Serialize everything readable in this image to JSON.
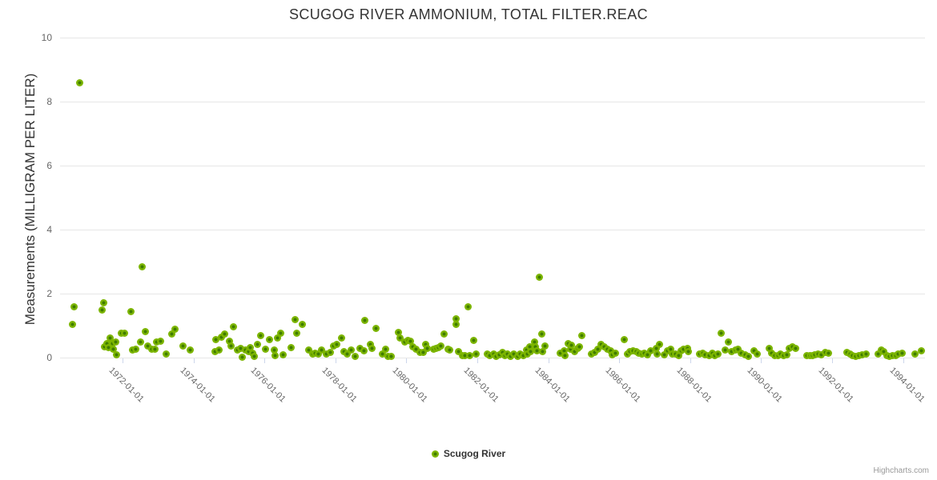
{
  "chart_data": {
    "type": "scatter",
    "title": "SCUGOG RIVER AMMONIUM, TOTAL FILTER.REAC",
    "ylabel": "Measurements (MILLIGRAM PER LITER)",
    "xlabel": "",
    "series_name": "Scugog River",
    "legend_position": "bottom-center",
    "grid": "horizontal",
    "ylim": [
      0,
      10
    ],
    "y_ticks": [
      0,
      2,
      4,
      6,
      8,
      10
    ],
    "xlim": [
      1970.24,
      1994.62
    ],
    "x_ticks": [
      {
        "y": 1972,
        "label": "1972-01-01"
      },
      {
        "y": 1974,
        "label": "1974-01-01"
      },
      {
        "y": 1976,
        "label": "1976-01-01"
      },
      {
        "y": 1978,
        "label": "1978-01-01"
      },
      {
        "y": 1980,
        "label": "1980-01-01"
      },
      {
        "y": 1982,
        "label": "1982-01-01"
      },
      {
        "y": 1984,
        "label": "1984-01-01"
      },
      {
        "y": 1986,
        "label": "1986-01-01"
      },
      {
        "y": 1988,
        "label": "1988-01-01"
      },
      {
        "y": 1990,
        "label": "1990-01-01"
      },
      {
        "y": 1992,
        "label": "1992-01-01"
      },
      {
        "y": 1994,
        "label": "1994-01-01"
      }
    ],
    "x_units": "decimal year of sample date",
    "y_units": "milligram per liter",
    "points": [
      [
        1970.58,
        1.05
      ],
      [
        1970.64,
        1.6
      ],
      [
        1970.8,
        8.6
      ],
      [
        1971.42,
        1.5
      ],
      [
        1971.46,
        1.71
      ],
      [
        1971.5,
        0.34
      ],
      [
        1971.55,
        0.44
      ],
      [
        1971.61,
        0.31
      ],
      [
        1971.64,
        0.62
      ],
      [
        1971.71,
        0.44
      ],
      [
        1971.73,
        0.27
      ],
      [
        1971.81,
        0.48
      ],
      [
        1971.84,
        0.08
      ],
      [
        1971.96,
        0.77
      ],
      [
        1972.06,
        0.77
      ],
      [
        1972.23,
        1.43
      ],
      [
        1972.28,
        0.24
      ],
      [
        1972.38,
        0.26
      ],
      [
        1972.51,
        0.48
      ],
      [
        1972.55,
        2.83
      ],
      [
        1972.64,
        0.81
      ],
      [
        1972.72,
        0.37
      ],
      [
        1972.83,
        0.27
      ],
      [
        1972.91,
        0.27
      ],
      [
        1972.96,
        0.48
      ],
      [
        1973.08,
        0.52
      ],
      [
        1973.23,
        0.11
      ],
      [
        1973.4,
        0.73
      ],
      [
        1973.47,
        0.9
      ],
      [
        1973.7,
        0.37
      ],
      [
        1973.91,
        0.25
      ],
      [
        1974.6,
        0.19
      ],
      [
        1974.64,
        0.56
      ],
      [
        1974.73,
        0.23
      ],
      [
        1974.78,
        0.65
      ],
      [
        1974.88,
        0.73
      ],
      [
        1975.02,
        0.51
      ],
      [
        1975.06,
        0.37
      ],
      [
        1975.13,
        0.96
      ],
      [
        1975.25,
        0.23
      ],
      [
        1975.32,
        0.29
      ],
      [
        1975.38,
        0.02
      ],
      [
        1975.47,
        0.23
      ],
      [
        1975.55,
        0.19
      ],
      [
        1975.61,
        0.31
      ],
      [
        1975.66,
        0.15
      ],
      [
        1975.71,
        0.04
      ],
      [
        1975.81,
        0.42
      ],
      [
        1975.89,
        0.69
      ],
      [
        1976.04,
        0.27
      ],
      [
        1976.15,
        0.56
      ],
      [
        1976.27,
        0.23
      ],
      [
        1976.3,
        0.06
      ],
      [
        1976.38,
        0.61
      ],
      [
        1976.45,
        0.76
      ],
      [
        1976.53,
        0.09
      ],
      [
        1976.75,
        0.31
      ],
      [
        1976.87,
        1.19
      ],
      [
        1976.91,
        0.77
      ],
      [
        1977.07,
        1.04
      ],
      [
        1977.25,
        0.23
      ],
      [
        1977.36,
        0.11
      ],
      [
        1977.43,
        0.15
      ],
      [
        1977.51,
        0.12
      ],
      [
        1977.62,
        0.23
      ],
      [
        1977.74,
        0.12
      ],
      [
        1977.85,
        0.17
      ],
      [
        1977.95,
        0.36
      ],
      [
        1978.04,
        0.42
      ],
      [
        1978.17,
        0.62
      ],
      [
        1978.25,
        0.19
      ],
      [
        1978.34,
        0.12
      ],
      [
        1978.45,
        0.23
      ],
      [
        1978.55,
        0.04
      ],
      [
        1978.7,
        0.29
      ],
      [
        1978.81,
        0.21
      ],
      [
        1978.83,
        1.17
      ],
      [
        1978.98,
        0.42
      ],
      [
        1979.04,
        0.29
      ],
      [
        1979.15,
        0.91
      ],
      [
        1979.32,
        0.11
      ],
      [
        1979.42,
        0.27
      ],
      [
        1979.49,
        0.04
      ],
      [
        1979.58,
        0.04
      ],
      [
        1979.77,
        0.79
      ],
      [
        1979.83,
        0.62
      ],
      [
        1979.95,
        0.48
      ],
      [
        1980.04,
        0.54
      ],
      [
        1980.11,
        0.51
      ],
      [
        1980.19,
        0.34
      ],
      [
        1980.28,
        0.26
      ],
      [
        1980.38,
        0.17
      ],
      [
        1980.48,
        0.17
      ],
      [
        1980.55,
        0.42
      ],
      [
        1980.58,
        0.29
      ],
      [
        1980.76,
        0.27
      ],
      [
        1980.83,
        0.29
      ],
      [
        1980.91,
        0.31
      ],
      [
        1980.98,
        0.37
      ],
      [
        1981.06,
        0.73
      ],
      [
        1981.17,
        0.26
      ],
      [
        1981.23,
        0.23
      ],
      [
        1981.4,
        1.21
      ],
      [
        1981.41,
        1.04
      ],
      [
        1981.46,
        0.19
      ],
      [
        1981.59,
        0.06
      ],
      [
        1981.66,
        0.06
      ],
      [
        1981.74,
        1.59
      ],
      [
        1981.79,
        0.06
      ],
      [
        1981.89,
        0.54
      ],
      [
        1981.96,
        0.12
      ],
      [
        1982.29,
        0.11
      ],
      [
        1982.36,
        0.06
      ],
      [
        1982.47,
        0.12
      ],
      [
        1982.53,
        0.04
      ],
      [
        1982.62,
        0.1
      ],
      [
        1982.72,
        0.16
      ],
      [
        1982.77,
        0.06
      ],
      [
        1982.85,
        0.11
      ],
      [
        1982.93,
        0.04
      ],
      [
        1983.02,
        0.12
      ],
      [
        1983.13,
        0.04
      ],
      [
        1983.21,
        0.11
      ],
      [
        1983.31,
        0.06
      ],
      [
        1983.4,
        0.23
      ],
      [
        1983.41,
        0.12
      ],
      [
        1983.49,
        0.34
      ],
      [
        1983.51,
        0.19
      ],
      [
        1983.61,
        0.48
      ],
      [
        1983.64,
        0.34
      ],
      [
        1983.68,
        0.21
      ],
      [
        1983.76,
        2.52
      ],
      [
        1983.81,
        0.73
      ],
      [
        1983.83,
        0.19
      ],
      [
        1983.91,
        0.36
      ],
      [
        1984.34,
        0.15
      ],
      [
        1984.44,
        0.21
      ],
      [
        1984.47,
        0.06
      ],
      [
        1984.56,
        0.44
      ],
      [
        1984.62,
        0.26
      ],
      [
        1984.66,
        0.4
      ],
      [
        1984.74,
        0.19
      ],
      [
        1984.83,
        0.29
      ],
      [
        1984.89,
        0.34
      ],
      [
        1984.94,
        0.69
      ],
      [
        1985.21,
        0.12
      ],
      [
        1985.3,
        0.17
      ],
      [
        1985.4,
        0.27
      ],
      [
        1985.49,
        0.42
      ],
      [
        1985.58,
        0.34
      ],
      [
        1985.67,
        0.27
      ],
      [
        1985.77,
        0.21
      ],
      [
        1985.8,
        0.09
      ],
      [
        1985.9,
        0.15
      ],
      [
        1986.15,
        0.56
      ],
      [
        1986.23,
        0.12
      ],
      [
        1986.3,
        0.19
      ],
      [
        1986.4,
        0.21
      ],
      [
        1986.48,
        0.19
      ],
      [
        1986.55,
        0.15
      ],
      [
        1986.63,
        0.12
      ],
      [
        1986.7,
        0.15
      ],
      [
        1986.79,
        0.09
      ],
      [
        1986.88,
        0.21
      ],
      [
        1987.04,
        0.29
      ],
      [
        1987.07,
        0.12
      ],
      [
        1987.13,
        0.42
      ],
      [
        1987.27,
        0.09
      ],
      [
        1987.36,
        0.21
      ],
      [
        1987.45,
        0.26
      ],
      [
        1987.49,
        0.12
      ],
      [
        1987.58,
        0.12
      ],
      [
        1987.67,
        0.06
      ],
      [
        1987.75,
        0.21
      ],
      [
        1987.82,
        0.26
      ],
      [
        1987.92,
        0.29
      ],
      [
        1987.95,
        0.19
      ],
      [
        1988.26,
        0.12
      ],
      [
        1988.35,
        0.15
      ],
      [
        1988.43,
        0.09
      ],
      [
        1988.53,
        0.06
      ],
      [
        1988.63,
        0.15
      ],
      [
        1988.7,
        0.06
      ],
      [
        1988.79,
        0.12
      ],
      [
        1988.88,
        0.77
      ],
      [
        1988.98,
        0.23
      ],
      [
        1989.08,
        0.48
      ],
      [
        1989.17,
        0.19
      ],
      [
        1989.28,
        0.23
      ],
      [
        1989.36,
        0.27
      ],
      [
        1989.45,
        0.15
      ],
      [
        1989.55,
        0.09
      ],
      [
        1989.64,
        0.04
      ],
      [
        1989.81,
        0.21
      ],
      [
        1989.89,
        0.12
      ],
      [
        1990.24,
        0.29
      ],
      [
        1990.29,
        0.15
      ],
      [
        1990.38,
        0.06
      ],
      [
        1990.47,
        0.06
      ],
      [
        1990.54,
        0.12
      ],
      [
        1990.64,
        0.06
      ],
      [
        1990.72,
        0.09
      ],
      [
        1990.79,
        0.29
      ],
      [
        1990.89,
        0.34
      ],
      [
        1990.98,
        0.29
      ],
      [
        1991.28,
        0.06
      ],
      [
        1991.37,
        0.06
      ],
      [
        1991.45,
        0.06
      ],
      [
        1991.52,
        0.09
      ],
      [
        1991.6,
        0.12
      ],
      [
        1991.7,
        0.09
      ],
      [
        1991.8,
        0.17
      ],
      [
        1991.89,
        0.15
      ],
      [
        1992.42,
        0.17
      ],
      [
        1992.51,
        0.12
      ],
      [
        1992.57,
        0.06
      ],
      [
        1992.66,
        0.04
      ],
      [
        1992.76,
        0.06
      ],
      [
        1992.85,
        0.09
      ],
      [
        1992.95,
        0.12
      ],
      [
        1993.29,
        0.12
      ],
      [
        1993.39,
        0.23
      ],
      [
        1993.46,
        0.19
      ],
      [
        1993.54,
        0.06
      ],
      [
        1993.61,
        0.04
      ],
      [
        1993.7,
        0.06
      ],
      [
        1993.79,
        0.06
      ],
      [
        1993.87,
        0.12
      ],
      [
        1993.97,
        0.15
      ],
      [
        1994.34,
        0.12
      ],
      [
        1994.52,
        0.21
      ]
    ]
  },
  "credits": {
    "label": "Highcharts.com"
  },
  "colors": {
    "marker_fill": "#7cb500",
    "marker_core": "#3f7c00",
    "gridline": "#e6e6e6",
    "axis_line": "#ccd6eb",
    "title_text": "#333333",
    "tick_text": "#666666",
    "credits_text": "#999999"
  }
}
